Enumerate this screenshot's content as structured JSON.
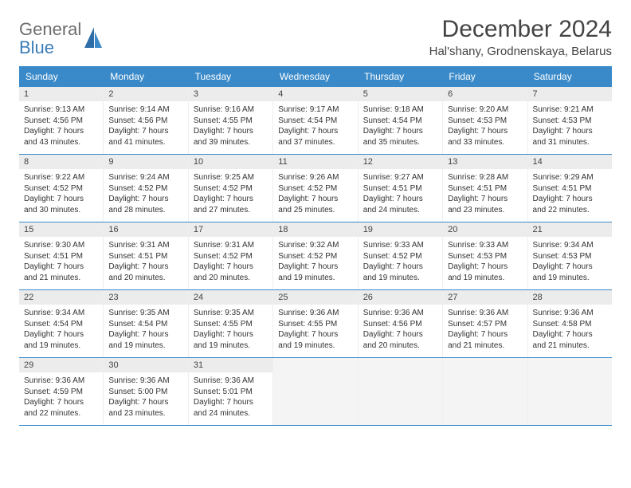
{
  "logo": {
    "part1": "General",
    "part2": "Blue"
  },
  "title": "December 2024",
  "location": "Hal'shany, Grodnenskaya, Belarus",
  "header_bg": "#3a8ac9",
  "divider_color": "#3a8ac9",
  "daynum_bg": "#ececec",
  "empty_bg": "#f4f4f4",
  "page_bg": "#ffffff",
  "text_color": "#333333",
  "fontsize_title": 30,
  "fontsize_location": 15,
  "fontsize_dayheader": 12,
  "fontsize_daynum": 11,
  "fontsize_info": 10,
  "day_names": [
    "Sunday",
    "Monday",
    "Tuesday",
    "Wednesday",
    "Thursday",
    "Friday",
    "Saturday"
  ],
  "weeks": [
    [
      {
        "n": "1",
        "sunrise": "Sunrise: 9:13 AM",
        "sunset": "Sunset: 4:56 PM",
        "day1": "Daylight: 7 hours",
        "day2": "and 43 minutes."
      },
      {
        "n": "2",
        "sunrise": "Sunrise: 9:14 AM",
        "sunset": "Sunset: 4:56 PM",
        "day1": "Daylight: 7 hours",
        "day2": "and 41 minutes."
      },
      {
        "n": "3",
        "sunrise": "Sunrise: 9:16 AM",
        "sunset": "Sunset: 4:55 PM",
        "day1": "Daylight: 7 hours",
        "day2": "and 39 minutes."
      },
      {
        "n": "4",
        "sunrise": "Sunrise: 9:17 AM",
        "sunset": "Sunset: 4:54 PM",
        "day1": "Daylight: 7 hours",
        "day2": "and 37 minutes."
      },
      {
        "n": "5",
        "sunrise": "Sunrise: 9:18 AM",
        "sunset": "Sunset: 4:54 PM",
        "day1": "Daylight: 7 hours",
        "day2": "and 35 minutes."
      },
      {
        "n": "6",
        "sunrise": "Sunrise: 9:20 AM",
        "sunset": "Sunset: 4:53 PM",
        "day1": "Daylight: 7 hours",
        "day2": "and 33 minutes."
      },
      {
        "n": "7",
        "sunrise": "Sunrise: 9:21 AM",
        "sunset": "Sunset: 4:53 PM",
        "day1": "Daylight: 7 hours",
        "day2": "and 31 minutes."
      }
    ],
    [
      {
        "n": "8",
        "sunrise": "Sunrise: 9:22 AM",
        "sunset": "Sunset: 4:52 PM",
        "day1": "Daylight: 7 hours",
        "day2": "and 30 minutes."
      },
      {
        "n": "9",
        "sunrise": "Sunrise: 9:24 AM",
        "sunset": "Sunset: 4:52 PM",
        "day1": "Daylight: 7 hours",
        "day2": "and 28 minutes."
      },
      {
        "n": "10",
        "sunrise": "Sunrise: 9:25 AM",
        "sunset": "Sunset: 4:52 PM",
        "day1": "Daylight: 7 hours",
        "day2": "and 27 minutes."
      },
      {
        "n": "11",
        "sunrise": "Sunrise: 9:26 AM",
        "sunset": "Sunset: 4:52 PM",
        "day1": "Daylight: 7 hours",
        "day2": "and 25 minutes."
      },
      {
        "n": "12",
        "sunrise": "Sunrise: 9:27 AM",
        "sunset": "Sunset: 4:51 PM",
        "day1": "Daylight: 7 hours",
        "day2": "and 24 minutes."
      },
      {
        "n": "13",
        "sunrise": "Sunrise: 9:28 AM",
        "sunset": "Sunset: 4:51 PM",
        "day1": "Daylight: 7 hours",
        "day2": "and 23 minutes."
      },
      {
        "n": "14",
        "sunrise": "Sunrise: 9:29 AM",
        "sunset": "Sunset: 4:51 PM",
        "day1": "Daylight: 7 hours",
        "day2": "and 22 minutes."
      }
    ],
    [
      {
        "n": "15",
        "sunrise": "Sunrise: 9:30 AM",
        "sunset": "Sunset: 4:51 PM",
        "day1": "Daylight: 7 hours",
        "day2": "and 21 minutes."
      },
      {
        "n": "16",
        "sunrise": "Sunrise: 9:31 AM",
        "sunset": "Sunset: 4:51 PM",
        "day1": "Daylight: 7 hours",
        "day2": "and 20 minutes."
      },
      {
        "n": "17",
        "sunrise": "Sunrise: 9:31 AM",
        "sunset": "Sunset: 4:52 PM",
        "day1": "Daylight: 7 hours",
        "day2": "and 20 minutes."
      },
      {
        "n": "18",
        "sunrise": "Sunrise: 9:32 AM",
        "sunset": "Sunset: 4:52 PM",
        "day1": "Daylight: 7 hours",
        "day2": "and 19 minutes."
      },
      {
        "n": "19",
        "sunrise": "Sunrise: 9:33 AM",
        "sunset": "Sunset: 4:52 PM",
        "day1": "Daylight: 7 hours",
        "day2": "and 19 minutes."
      },
      {
        "n": "20",
        "sunrise": "Sunrise: 9:33 AM",
        "sunset": "Sunset: 4:53 PM",
        "day1": "Daylight: 7 hours",
        "day2": "and 19 minutes."
      },
      {
        "n": "21",
        "sunrise": "Sunrise: 9:34 AM",
        "sunset": "Sunset: 4:53 PM",
        "day1": "Daylight: 7 hours",
        "day2": "and 19 minutes."
      }
    ],
    [
      {
        "n": "22",
        "sunrise": "Sunrise: 9:34 AM",
        "sunset": "Sunset: 4:54 PM",
        "day1": "Daylight: 7 hours",
        "day2": "and 19 minutes."
      },
      {
        "n": "23",
        "sunrise": "Sunrise: 9:35 AM",
        "sunset": "Sunset: 4:54 PM",
        "day1": "Daylight: 7 hours",
        "day2": "and 19 minutes."
      },
      {
        "n": "24",
        "sunrise": "Sunrise: 9:35 AM",
        "sunset": "Sunset: 4:55 PM",
        "day1": "Daylight: 7 hours",
        "day2": "and 19 minutes."
      },
      {
        "n": "25",
        "sunrise": "Sunrise: 9:36 AM",
        "sunset": "Sunset: 4:55 PM",
        "day1": "Daylight: 7 hours",
        "day2": "and 19 minutes."
      },
      {
        "n": "26",
        "sunrise": "Sunrise: 9:36 AM",
        "sunset": "Sunset: 4:56 PM",
        "day1": "Daylight: 7 hours",
        "day2": "and 20 minutes."
      },
      {
        "n": "27",
        "sunrise": "Sunrise: 9:36 AM",
        "sunset": "Sunset: 4:57 PM",
        "day1": "Daylight: 7 hours",
        "day2": "and 21 minutes."
      },
      {
        "n": "28",
        "sunrise": "Sunrise: 9:36 AM",
        "sunset": "Sunset: 4:58 PM",
        "day1": "Daylight: 7 hours",
        "day2": "and 21 minutes."
      }
    ],
    [
      {
        "n": "29",
        "sunrise": "Sunrise: 9:36 AM",
        "sunset": "Sunset: 4:59 PM",
        "day1": "Daylight: 7 hours",
        "day2": "and 22 minutes."
      },
      {
        "n": "30",
        "sunrise": "Sunrise: 9:36 AM",
        "sunset": "Sunset: 5:00 PM",
        "day1": "Daylight: 7 hours",
        "day2": "and 23 minutes."
      },
      {
        "n": "31",
        "sunrise": "Sunrise: 9:36 AM",
        "sunset": "Sunset: 5:01 PM",
        "day1": "Daylight: 7 hours",
        "day2": "and 24 minutes."
      },
      {
        "empty": true
      },
      {
        "empty": true
      },
      {
        "empty": true
      },
      {
        "empty": true
      }
    ]
  ]
}
